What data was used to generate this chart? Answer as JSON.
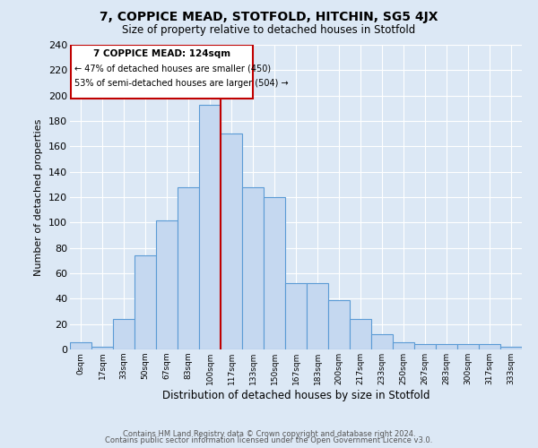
{
  "title": "7, COPPICE MEAD, STOTFOLD, HITCHIN, SG5 4JX",
  "subtitle": "Size of property relative to detached houses in Stotfold",
  "xlabel": "Distribution of detached houses by size in Stotfold",
  "ylabel": "Number of detached properties",
  "footnote1": "Contains HM Land Registry data © Crown copyright and database right 2024.",
  "footnote2": "Contains public sector information licensed under the Open Government Licence v3.0.",
  "bar_labels": [
    "0sqm",
    "17sqm",
    "33sqm",
    "50sqm",
    "67sqm",
    "83sqm",
    "100sqm",
    "117sqm",
    "133sqm",
    "150sqm",
    "167sqm",
    "183sqm",
    "200sqm",
    "217sqm",
    "233sqm",
    "250sqm",
    "267sqm",
    "283sqm",
    "300sqm",
    "317sqm",
    "333sqm"
  ],
  "bar_heights": [
    6,
    2,
    24,
    74,
    102,
    128,
    193,
    170,
    128,
    120,
    52,
    52,
    39,
    24,
    12,
    6,
    4,
    4,
    4,
    4,
    2
  ],
  "bar_color": "#c5d8f0",
  "bar_edge_color": "#5b9bd5",
  "ylim": [
    0,
    240
  ],
  "yticks": [
    0,
    20,
    40,
    60,
    80,
    100,
    120,
    140,
    160,
    180,
    200,
    220,
    240
  ],
  "property_label": "7 COPPICE MEAD: 124sqm",
  "annotation_line1": "← 47% of detached houses are smaller (450)",
  "annotation_line2": "53% of semi-detached houses are larger (504) →",
  "vline_color": "#c00000",
  "box_color": "#c00000",
  "bg_color": "#dce8f5",
  "grid_color": "#ffffff"
}
